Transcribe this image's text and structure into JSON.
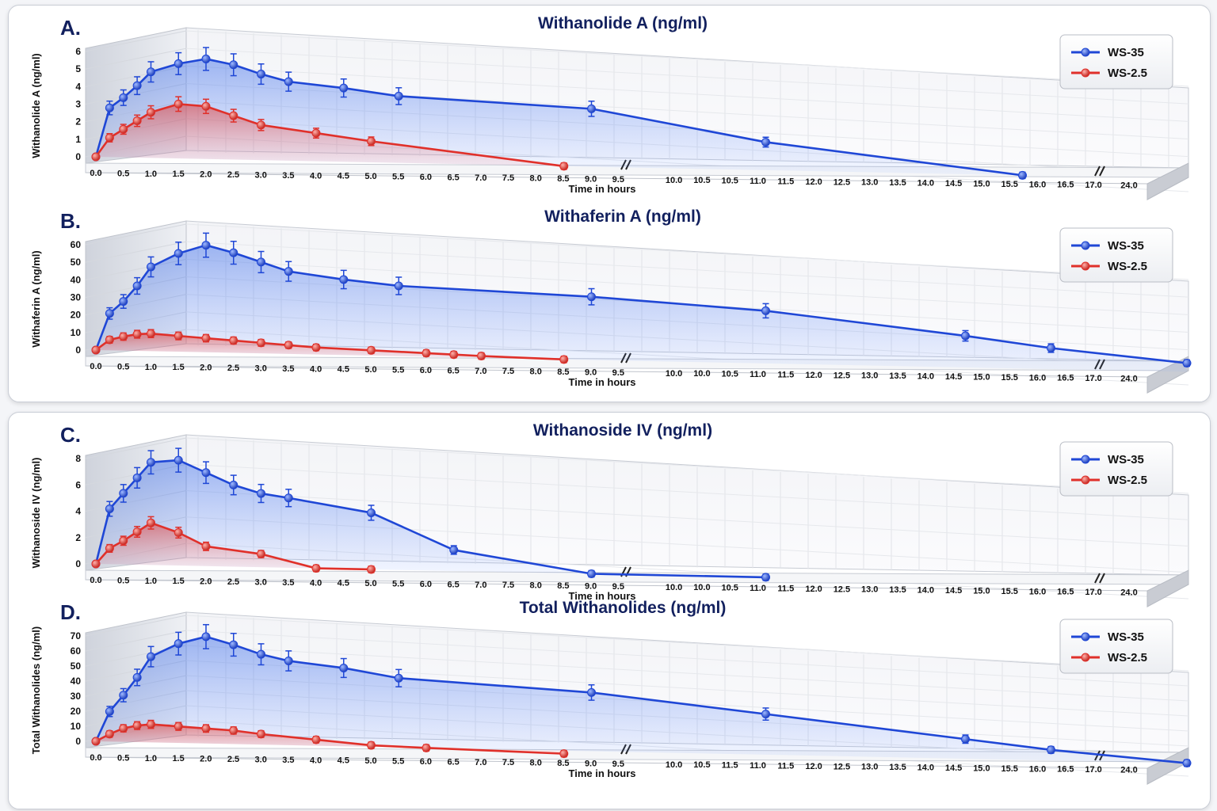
{
  "colors": {
    "ws35": "#1f47d6",
    "ws25": "#e0302a",
    "title": "#12205e"
  },
  "x_axis_label": "Time in hours",
  "chart_data": [
    {
      "type": "line",
      "panel": "A.",
      "title": "Withanolide A (ng/ml)",
      "ylabel": "Withanolide A (ng/ml)",
      "xlabel": "Time in hours",
      "ylim": [
        0,
        6
      ],
      "yticks": [
        0,
        1,
        2,
        3,
        4,
        5,
        6
      ],
      "xtick_labels": [
        "0.0",
        "0.5",
        "1.0",
        "1.5",
        "2.0",
        "2.5",
        "3.0",
        "3.5",
        "4.0",
        "4.5",
        "5.0",
        "5.5",
        "6.0",
        "6.5",
        "7.0",
        "7.5",
        "8.0",
        "8.5",
        "9.0",
        "9.5",
        "10.0",
        "10.5",
        "10.5",
        "11.0",
        "11.5",
        "12.0",
        "12.5",
        "13.0",
        "13.5",
        "14.0",
        "14.5",
        "15.0",
        "15.5",
        "16.0",
        "16.5",
        "17.0",
        "24.0"
      ],
      "axis_break_after": [
        "9.0",
        "17.0"
      ],
      "legend": [
        "WS-35",
        "WS-2.5"
      ],
      "legend_position": "top-right",
      "series": [
        {
          "name": "WS-35",
          "x": [
            0.0,
            0.25,
            0.5,
            0.75,
            1.0,
            1.5,
            2.0,
            2.5,
            3.0,
            3.5,
            4.5,
            5.5,
            9.0,
            11.5,
            16.0
          ],
          "y": [
            0.0,
            2.8,
            3.4,
            4.1,
            4.9,
            5.4,
            5.7,
            5.4,
            4.9,
            4.5,
            4.2,
            3.8,
            3.3,
            1.6,
            0.0
          ]
        },
        {
          "name": "WS-2.5",
          "x": [
            0.0,
            0.25,
            0.5,
            0.75,
            1.0,
            1.5,
            2.0,
            2.5,
            3.0,
            4.0,
            5.0,
            8.5
          ],
          "y": [
            0.0,
            1.1,
            1.6,
            2.1,
            2.6,
            3.1,
            3.0,
            2.5,
            2.0,
            1.6,
            1.2,
            0.0
          ]
        }
      ]
    },
    {
      "type": "line",
      "panel": "B.",
      "title": "Withaferin A (ng/ml)",
      "ylabel": "Withaferin A (ng/ml)",
      "xlabel": "Time in hours",
      "ylim": [
        0,
        60
      ],
      "yticks": [
        0,
        10,
        20,
        30,
        40,
        50,
        60
      ],
      "xtick_labels": [
        "0.0",
        "0.5",
        "1.0",
        "1.5",
        "2.0",
        "2.5",
        "3.0",
        "3.5",
        "4.0",
        "4.5",
        "5.0",
        "5.5",
        "6.0",
        "6.5",
        "7.0",
        "7.5",
        "8.0",
        "8.5",
        "9.0",
        "9.5",
        "10.0",
        "10.0",
        "10.5",
        "11.0",
        "11.5",
        "12.0",
        "12.5",
        "13.0",
        "13.5",
        "14.0",
        "14.5",
        "15.0",
        "15.5",
        "16.0",
        "16.5",
        "17.0",
        "24.0"
      ],
      "axis_break_after": [
        "9.0",
        "17.0"
      ],
      "legend": [
        "WS-35",
        "WS-2.5"
      ],
      "legend_position": "top-right",
      "series": [
        {
          "name": "WS-35",
          "x": [
            0.0,
            0.25,
            0.5,
            0.75,
            1.0,
            1.5,
            2.0,
            2.5,
            3.0,
            3.5,
            4.5,
            5.5,
            9.0,
            11.5,
            15.0,
            16.5,
            24.0
          ],
          "y": [
            0.0,
            21,
            28,
            37,
            48,
            56,
            61,
            57,
            52,
            47,
            43,
            40,
            36,
            30,
            18,
            12,
            5
          ]
        },
        {
          "name": "WS-2.5",
          "x": [
            0.0,
            0.25,
            0.5,
            0.75,
            1.0,
            1.5,
            2.0,
            2.5,
            3.0,
            3.5,
            4.0,
            5.0,
            6.0,
            6.5,
            7.0,
            8.5
          ],
          "y": [
            0.0,
            6,
            8,
            9.5,
            10,
            9,
            8,
            7,
            6,
            5,
            4,
            3,
            2,
            1.5,
            1,
            0
          ]
        }
      ]
    },
    {
      "type": "line",
      "panel": "C.",
      "title": "Withanoside IV (ng/ml)",
      "ylabel": "Withanoside IV (ng/ml)",
      "xlabel": "Time in hours",
      "ylim": [
        0,
        8
      ],
      "yticks": [
        0,
        2,
        4,
        6,
        8
      ],
      "xtick_labels": [
        "0.0",
        "0.5",
        "1.0",
        "1.5",
        "2.0",
        "2.5",
        "3.0",
        "3.5",
        "4.0",
        "4.5",
        "5.0",
        "5.5",
        "6.0",
        "6.5",
        "7.0",
        "7.5",
        "8.0",
        "8.5",
        "9.0",
        "9.5",
        "10.0",
        "10.0",
        "10.5",
        "11.0",
        "11.5",
        "12.0",
        "12.5",
        "13.0",
        "13.5",
        "14.0",
        "14.5",
        "15.0",
        "15.5",
        "16.0",
        "16.5",
        "17.0",
        "24.0"
      ],
      "axis_break_after": [
        "9.0",
        "17.0"
      ],
      "legend": [
        "WS-35",
        "WS-2.5"
      ],
      "legend_position": "top-right",
      "series": [
        {
          "name": "WS-35",
          "x": [
            0.0,
            0.25,
            0.5,
            0.75,
            1.0,
            1.5,
            2.0,
            2.5,
            3.0,
            3.5,
            5.0,
            6.5,
            9.0,
            11.5
          ],
          "y": [
            0.0,
            4.2,
            5.4,
            6.6,
            7.8,
            8.0,
            7.1,
            6.2,
            5.6,
            5.3,
            4.3,
            1.6,
            0.0,
            0.0
          ]
        },
        {
          "name": "WS-2.5",
          "x": [
            0.0,
            0.25,
            0.5,
            0.75,
            1.0,
            1.5,
            2.0,
            3.0,
            4.0,
            5.0
          ],
          "y": [
            0.0,
            1.2,
            1.8,
            2.5,
            3.2,
            2.5,
            1.5,
            1.0,
            0.0,
            0.0
          ]
        }
      ]
    },
    {
      "type": "line",
      "panel": "D.",
      "title": "Total Withanolides (ng/ml)",
      "ylabel": "Total Withanolides (ng/ml)",
      "xlabel": "Time in hours",
      "ylim": [
        0,
        70
      ],
      "yticks": [
        0,
        10,
        20,
        30,
        40,
        50,
        60,
        70
      ],
      "xtick_labels": [
        "0.0",
        "0.5",
        "1.0",
        "1.5",
        "2.0",
        "2.5",
        "3.0",
        "3.5",
        "4.0",
        "4.5",
        "5.0",
        "5.5",
        "6.0",
        "6.5",
        "7.0",
        "7.5",
        "8.0",
        "8.5",
        "9.0",
        "9.5",
        "10.0",
        "10.5",
        "11.5",
        "11.0",
        "11.5",
        "12.0",
        "12.5",
        "13.0",
        "13.5",
        "14.0",
        "14.5",
        "15.0",
        "15.5",
        "16.0",
        "16.5",
        "17.0",
        "24.0"
      ],
      "axis_break_after": [
        "9.0",
        "17.0"
      ],
      "legend": [
        "WS-35",
        "WS-2.5"
      ],
      "legend_position": "top-right",
      "series": [
        {
          "name": "WS-35",
          "x": [
            0.0,
            0.25,
            0.5,
            0.75,
            1.0,
            1.5,
            2.0,
            2.5,
            3.0,
            3.5,
            4.5,
            5.5,
            9.0,
            11.5,
            15.0,
            16.5,
            24.0
          ],
          "y": [
            0.0,
            20,
            31,
            43,
            57,
            66,
            71,
            66,
            60,
            56,
            52,
            46,
            39,
            27,
            13,
            7,
            0
          ]
        },
        {
          "name": "WS-2.5",
          "x": [
            0.0,
            0.25,
            0.5,
            0.75,
            1.0,
            1.5,
            2.0,
            2.5,
            3.0,
            4.0,
            5.0,
            6.0,
            8.5
          ],
          "y": [
            0.0,
            5,
            9,
            11,
            12,
            11,
            10,
            9,
            7,
            4,
            1,
            0,
            -2
          ]
        }
      ]
    }
  ]
}
